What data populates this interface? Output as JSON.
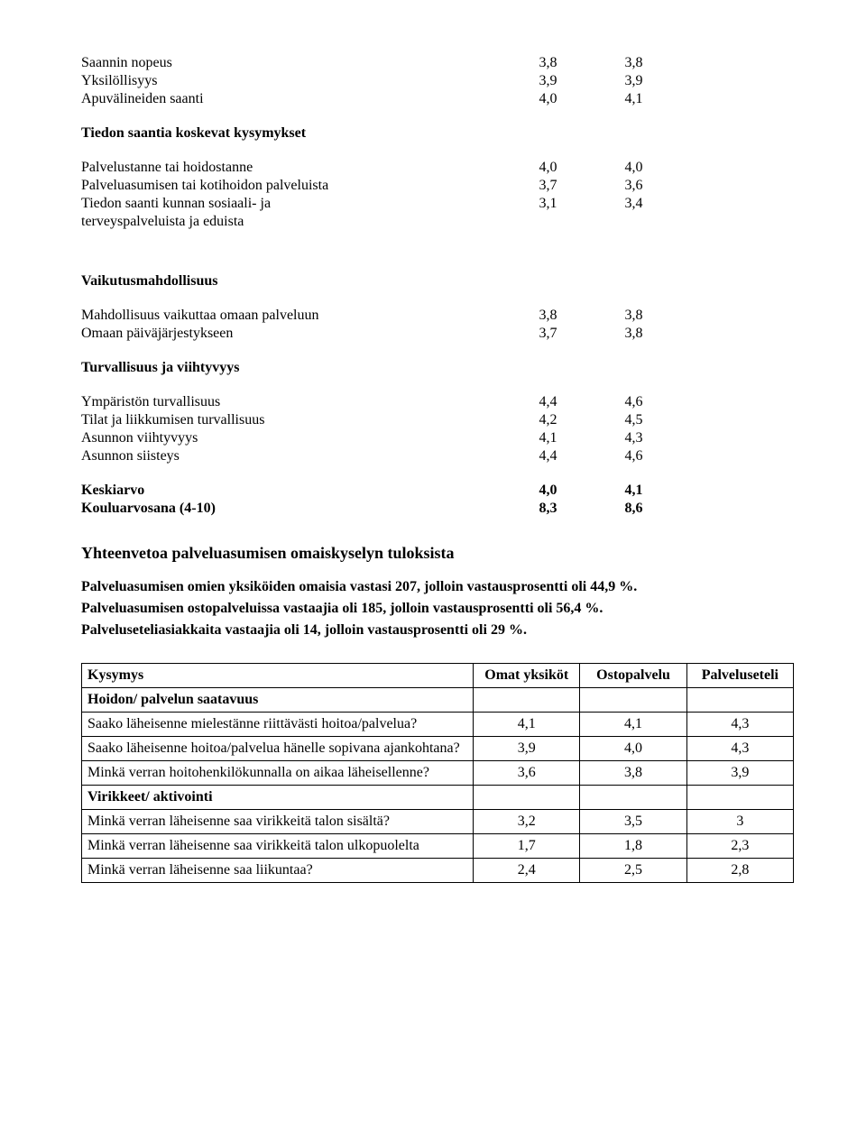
{
  "block1": {
    "rows": [
      {
        "label": "Saannin nopeus",
        "c1": "3,8",
        "c2": "3,8"
      },
      {
        "label": "Yksilöllisyys",
        "c1": "3,9",
        "c2": "3,9"
      },
      {
        "label": "Apuvälineiden saanti",
        "c1": "4,0",
        "c2": "4,1"
      }
    ]
  },
  "block2": {
    "title": "Tiedon saantia koskevat kysymykset",
    "rows": [
      {
        "label": "Palvelustanne tai hoidostanne",
        "c1": "4,0",
        "c2": "4,0"
      },
      {
        "label": "Palveluasumisen tai kotihoidon palveluista",
        "c1": "3,7",
        "c2": "3,6"
      },
      {
        "label": "Tiedon saanti kunnan sosiaali- ja",
        "c1": "3,1",
        "c2": "3,4"
      },
      {
        "label": "terveyspalveluista ja eduista",
        "c1": "",
        "c2": ""
      }
    ]
  },
  "block3": {
    "title": "Vaikutusmahdollisuus",
    "rows": [
      {
        "label": "Mahdollisuus vaikuttaa omaan palveluun",
        "c1": "3,8",
        "c2": "3,8"
      },
      {
        "label": "Omaan päiväjärjestykseen",
        "c1": "3,7",
        "c2": "3,8"
      }
    ]
  },
  "block4": {
    "title": "Turvallisuus ja viihtyvyys",
    "rows": [
      {
        "label": "Ympäristön turvallisuus",
        "c1": "4,4",
        "c2": "4,6"
      },
      {
        "label": "Tilat ja liikkumisen turvallisuus",
        "c1": "4,2",
        "c2": "4,5"
      },
      {
        "label": "Asunnon viihtyvyys",
        "c1": "4,1",
        "c2": "4,3"
      },
      {
        "label": "Asunnon siisteys",
        "c1": "4,4",
        "c2": "4,6"
      }
    ]
  },
  "block5": {
    "rows": [
      {
        "label": "Keskiarvo",
        "c1": "4,0",
        "c2": "4,1"
      },
      {
        "label": "Kouluarvosana (4-10)",
        "c1": "8,3",
        "c2": "8,6"
      }
    ]
  },
  "summary": {
    "heading": "Yhteenvetoa palveluasumisen omaiskyselyn tuloksista",
    "p1": "Palveluasumisen omien yksiköiden omaisia vastasi 207, jolloin vastausprosentti oli 44,9 %.",
    "p2": "Palveluasumisen ostopalveluissa vastaajia oli 185, jolloin vastausprosentti oli 56,4 %.",
    "p3": "Palveluseteliasiakkaita vastaajia oli 14, jolloin vastausprosentti oli 29 %."
  },
  "table": {
    "headers": {
      "q": "Kysymys",
      "c1": "Omat yksiköt",
      "c2": "Ostopalvelu",
      "c3": "Palveluseteli"
    },
    "rows": [
      {
        "type": "section",
        "label": "Hoidon/ palvelun saatavuus"
      },
      {
        "type": "q",
        "label": "Saako läheisenne mielestänne riittävästi hoitoa/palvelua?",
        "c1": "4,1",
        "c2": "4,1",
        "c3": "4,3"
      },
      {
        "type": "q",
        "label": "Saako läheisenne hoitoa/palvelua hänelle sopivana ajankohtana?",
        "c1": "3,9",
        "c2": "4,0",
        "c3": "4,3"
      },
      {
        "type": "q",
        "label": "Minkä verran hoitohenkilökunnalla on aikaa läheisellenne?",
        "c1": "3,6",
        "c2": "3,8",
        "c3": "3,9"
      },
      {
        "type": "section",
        "label": "Virikkeet/ aktivointi"
      },
      {
        "type": "q",
        "label": "Minkä verran läheisenne saa virikkeitä talon sisältä?",
        "c1": "3,2",
        "c2": "3,5",
        "c3": "3"
      },
      {
        "type": "q",
        "label": "Minkä verran läheisenne saa virikkeitä talon ulkopuolelta",
        "c1": "1,7",
        "c2": "1,8",
        "c3": "2,3"
      },
      {
        "type": "q",
        "label": "Minkä verran läheisenne saa liikuntaa?",
        "c1": "2,4",
        "c2": "2,5",
        "c3": "2,8"
      }
    ]
  }
}
